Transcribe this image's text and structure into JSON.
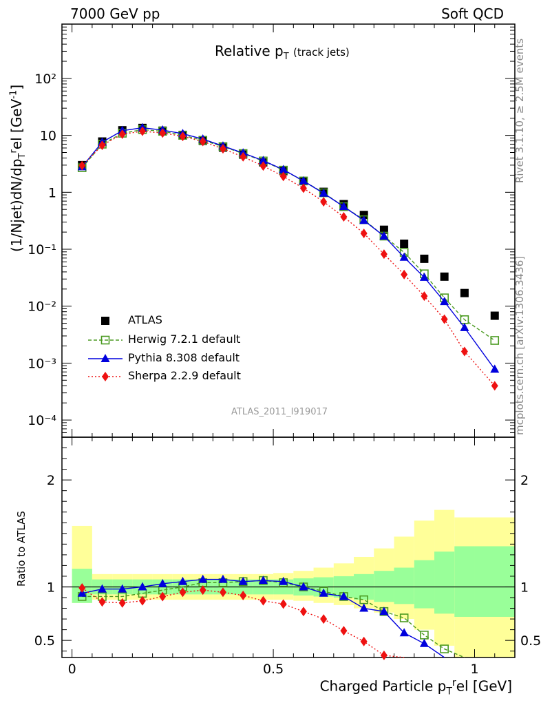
{
  "header": {
    "left": "7000 GeV pp",
    "right": "Soft QCD"
  },
  "title": {
    "main": "Relative p",
    "sub": "T",
    "note": "(track jets)"
  },
  "ylabel_main": "(1/Njet)dN/dp",
  "ylabel_main_parts": {
    "sub": "T",
    "sup": "r",
    "tail": "el [GeV",
    "unit_sup": "-1",
    "close": "]"
  },
  "ylabel_ratio": "Ratio to ATLAS",
  "xlabel": "Charged Particle p",
  "xlabel_parts": {
    "sub": "T",
    "sup": "r",
    "tail": "el [GeV]"
  },
  "side_rivet": "Rivet 3.1.10, ≥ 2.5M events",
  "side_mcplots": "mcplots.cern.ch [arXiv:1306.3436]",
  "ref_label": "ATLAS_2011_I919017",
  "legend": [
    "ATLAS",
    "Herwig 7.2.1 default",
    "Pythia 8.308 default",
    "Sherpa 2.2.9 default"
  ],
  "colors": {
    "atlas": "#000000",
    "herwig": "#4a9a20",
    "pythia": "#0000dd",
    "sherpa": "#ee1111",
    "band_inner": "#99ff99",
    "band_outer": "#ffff99"
  },
  "chart_data": [
    {
      "type": "scatter",
      "log_y": true,
      "xlim": [
        -0.025,
        1.1
      ],
      "ylim": [
        5e-05,
        900
      ],
      "x_ticks": [
        "0",
        "0.5",
        "1"
      ],
      "y_ticks": [
        "10⁻⁴",
        "10⁻³",
        "10⁻²",
        "10⁻¹",
        "1",
        "10",
        "10²"
      ],
      "x": [
        0.025,
        0.075,
        0.125,
        0.175,
        0.225,
        0.275,
        0.325,
        0.375,
        0.425,
        0.475,
        0.525,
        0.575,
        0.625,
        0.675,
        0.725,
        0.775,
        0.825,
        0.875,
        0.925,
        0.975,
        1.05
      ],
      "series": [
        {
          "name": "ATLAS",
          "values": [
            3.0,
            7.8,
            12.3,
            13.5,
            12.1,
            10.2,
            8.0,
            6.1,
            4.6,
            3.35,
            2.35,
            1.58,
            1.02,
            0.62,
            0.4,
            0.22,
            0.125,
            0.068,
            0.033,
            0.017,
            0.0068
          ]
        },
        {
          "name": "Herwig 7.2.1 default",
          "values": [
            2.7,
            7.0,
            10.9,
            12.6,
            11.8,
            10.0,
            8.2,
            6.35,
            4.8,
            3.55,
            2.45,
            1.58,
            0.98,
            0.56,
            0.33,
            0.17,
            0.088,
            0.037,
            0.014,
            0.0058,
            0.0025
          ]
        },
        {
          "name": "Pythia 8.308 default",
          "values": [
            2.8,
            7.6,
            12.1,
            13.6,
            12.4,
            10.7,
            8.6,
            6.5,
            4.9,
            3.6,
            2.5,
            1.58,
            0.96,
            0.56,
            0.32,
            0.17,
            0.072,
            0.032,
            0.012,
            0.0042,
            0.00078
          ]
        },
        {
          "name": "Sherpa 2.2.9 default",
          "values": [
            2.95,
            6.7,
            10.5,
            11.8,
            11.0,
            9.6,
            7.8,
            5.8,
            4.2,
            2.9,
            1.9,
            1.18,
            0.68,
            0.37,
            0.19,
            0.082,
            0.036,
            0.015,
            0.0059,
            0.0016,
            0.0004
          ]
        }
      ]
    },
    {
      "type": "line",
      "xlim": [
        -0.025,
        1.1
      ],
      "ylim": [
        0.34,
        2.4
      ],
      "x_ticks": [
        "0",
        "0.5",
        "1"
      ],
      "y_ticks": [
        "0.5",
        "1",
        "2"
      ],
      "x": [
        0.025,
        0.075,
        0.125,
        0.175,
        0.225,
        0.275,
        0.325,
        0.375,
        0.425,
        0.475,
        0.525,
        0.575,
        0.625,
        0.675,
        0.725,
        0.775,
        0.825,
        0.875,
        0.925,
        0.975,
        1.05
      ],
      "bins": [
        0.0,
        0.05,
        0.1,
        0.15,
        0.2,
        0.25,
        0.3,
        0.35,
        0.4,
        0.45,
        0.5,
        0.55,
        0.6,
        0.65,
        0.7,
        0.75,
        0.8,
        0.85,
        0.9,
        0.95,
        1.0,
        1.1
      ],
      "band_inner_lo": [
        0.85,
        0.93,
        0.93,
        0.93,
        0.93,
        0.93,
        0.93,
        0.93,
        0.93,
        0.93,
        0.93,
        0.92,
        0.91,
        0.9,
        0.88,
        0.86,
        0.84,
        0.8,
        0.75,
        0.72,
        0.72
      ],
      "band_inner_hi": [
        1.17,
        1.07,
        1.07,
        1.07,
        1.07,
        1.07,
        1.07,
        1.07,
        1.07,
        1.07,
        1.07,
        1.08,
        1.09,
        1.1,
        1.12,
        1.15,
        1.18,
        1.25,
        1.33,
        1.38,
        1.38
      ],
      "band_outer_lo": [
        0.85,
        0.88,
        0.88,
        0.88,
        0.88,
        0.88,
        0.88,
        0.88,
        0.88,
        0.88,
        0.88,
        0.87,
        0.85,
        0.83,
        0.8,
        0.76,
        0.7,
        0.6,
        0.45,
        0.34,
        0.34
      ],
      "band_outer_hi": [
        1.57,
        1.12,
        1.12,
        1.12,
        1.12,
        1.12,
        1.12,
        1.12,
        1.12,
        1.12,
        1.13,
        1.15,
        1.18,
        1.22,
        1.28,
        1.36,
        1.47,
        1.62,
        1.72,
        1.65,
        1.65
      ],
      "series": [
        {
          "name": "Herwig 7.2.1 default",
          "values": [
            0.91,
            0.91,
            0.91,
            0.94,
            0.97,
            1.0,
            1.04,
            1.04,
            1.05,
            1.06,
            1.04,
            1.0,
            0.96,
            0.91,
            0.88,
            0.77,
            0.71,
            0.55,
            0.42,
            0.34,
            0.34
          ]
        },
        {
          "name": "Pythia 8.308 default",
          "values": [
            0.94,
            0.98,
            0.98,
            1.0,
            1.03,
            1.05,
            1.07,
            1.07,
            1.05,
            1.06,
            1.05,
            1.0,
            0.94,
            0.91,
            0.8,
            0.77,
            0.57,
            0.47,
            0.34,
            0.34,
            0.34
          ]
        },
        {
          "name": "Sherpa 2.2.9 default",
          "values": [
            0.99,
            0.86,
            0.85,
            0.87,
            0.91,
            0.95,
            0.97,
            0.95,
            0.92,
            0.87,
            0.84,
            0.77,
            0.7,
            0.59,
            0.49,
            0.36,
            0.34,
            0.34,
            0.34,
            0.34,
            0.34
          ]
        }
      ]
    }
  ]
}
